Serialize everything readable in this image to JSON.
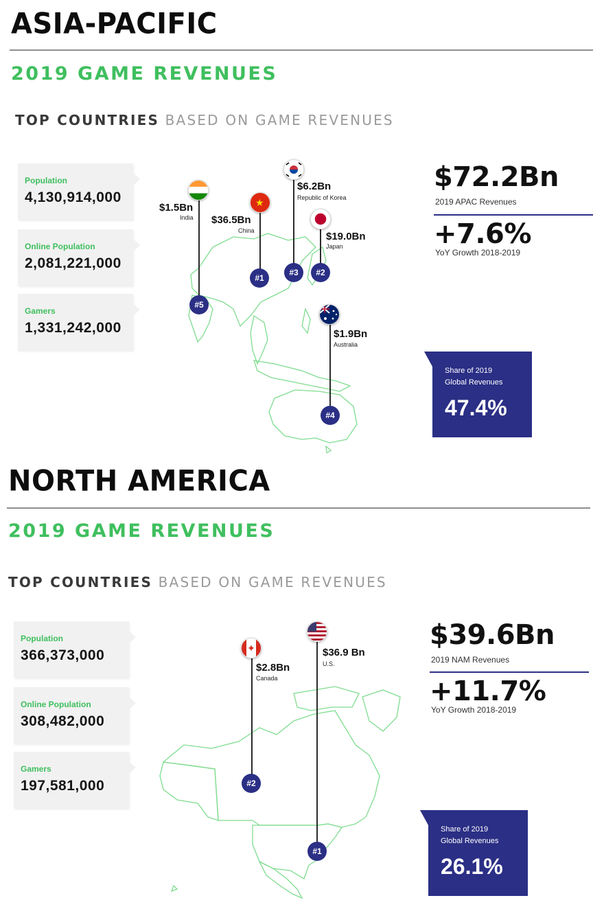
{
  "apac": {
    "title": "ASIA-PACIFIC",
    "revenue_heading": "2019 GAME REVENUES",
    "top_strong": "TOP COUNTRIES",
    "top_rest": "BASED ON GAME REVENUES",
    "stats": [
      {
        "label": "Population",
        "value": "4,130,914,000"
      },
      {
        "label": "Online Population",
        "value": "2,081,221,000"
      },
      {
        "label": "Gamers",
        "value": "1,331,242,000"
      }
    ],
    "countries": [
      {
        "value": "$1.5Bn",
        "name": "India",
        "rank": "#5",
        "flag": "india-flag-icon"
      },
      {
        "value": "$36.5Bn",
        "name": "China",
        "rank": "#1",
        "flag": "china-flag-icon"
      },
      {
        "value": "$6.2Bn",
        "name": "Republic of Korea",
        "rank": "#3",
        "flag": "korea-flag-icon"
      },
      {
        "value": "$19.0Bn",
        "name": "Japan",
        "rank": "#2",
        "flag": "japan-flag-icon"
      },
      {
        "value": "$1.9Bn",
        "name": "Australia",
        "rank": "#4",
        "flag": "australia-flag-icon"
      }
    ],
    "total_value": "$72.2Bn",
    "total_label": "2019 APAC Revenues",
    "growth_value": "+7.6%",
    "growth_label": "YoY Growth 2018-2019",
    "share_label_1": "Share of 2019",
    "share_label_2": "Global Revenues",
    "share_value": "47.4%",
    "share_fraction": 0.474
  },
  "nam": {
    "title": "NORTH AMERICA",
    "revenue_heading": "2019 GAME REVENUES",
    "top_strong": "TOP COUNTRIES",
    "top_rest": "BASED ON GAME REVENUES",
    "stats": [
      {
        "label": "Population",
        "value": "366,373,000"
      },
      {
        "label": "Online Population",
        "value": "308,482,000"
      },
      {
        "label": "Gamers",
        "value": "197,581,000"
      }
    ],
    "countries": [
      {
        "value": "$2.8Bn",
        "name": "Canada",
        "rank": "#2",
        "flag": "canada-flag-icon"
      },
      {
        "value": "$36.9 Bn",
        "name": "U.S.",
        "rank": "#1",
        "flag": "usa-flag-icon"
      }
    ],
    "total_value": "$39.6Bn",
    "total_label": "2019 NAM Revenues",
    "growth_value": "+11.7%",
    "growth_label": "YoY Growth 2018-2019",
    "share_label_1": "Share of 2019",
    "share_label_2": "Global Revenues",
    "share_value": "26.1%",
    "share_fraction": 0.261
  },
  "colors": {
    "accent_green": "#3fbf5e",
    "accent_navy": "#2b2f85",
    "map_green": "#7fdc8f"
  }
}
